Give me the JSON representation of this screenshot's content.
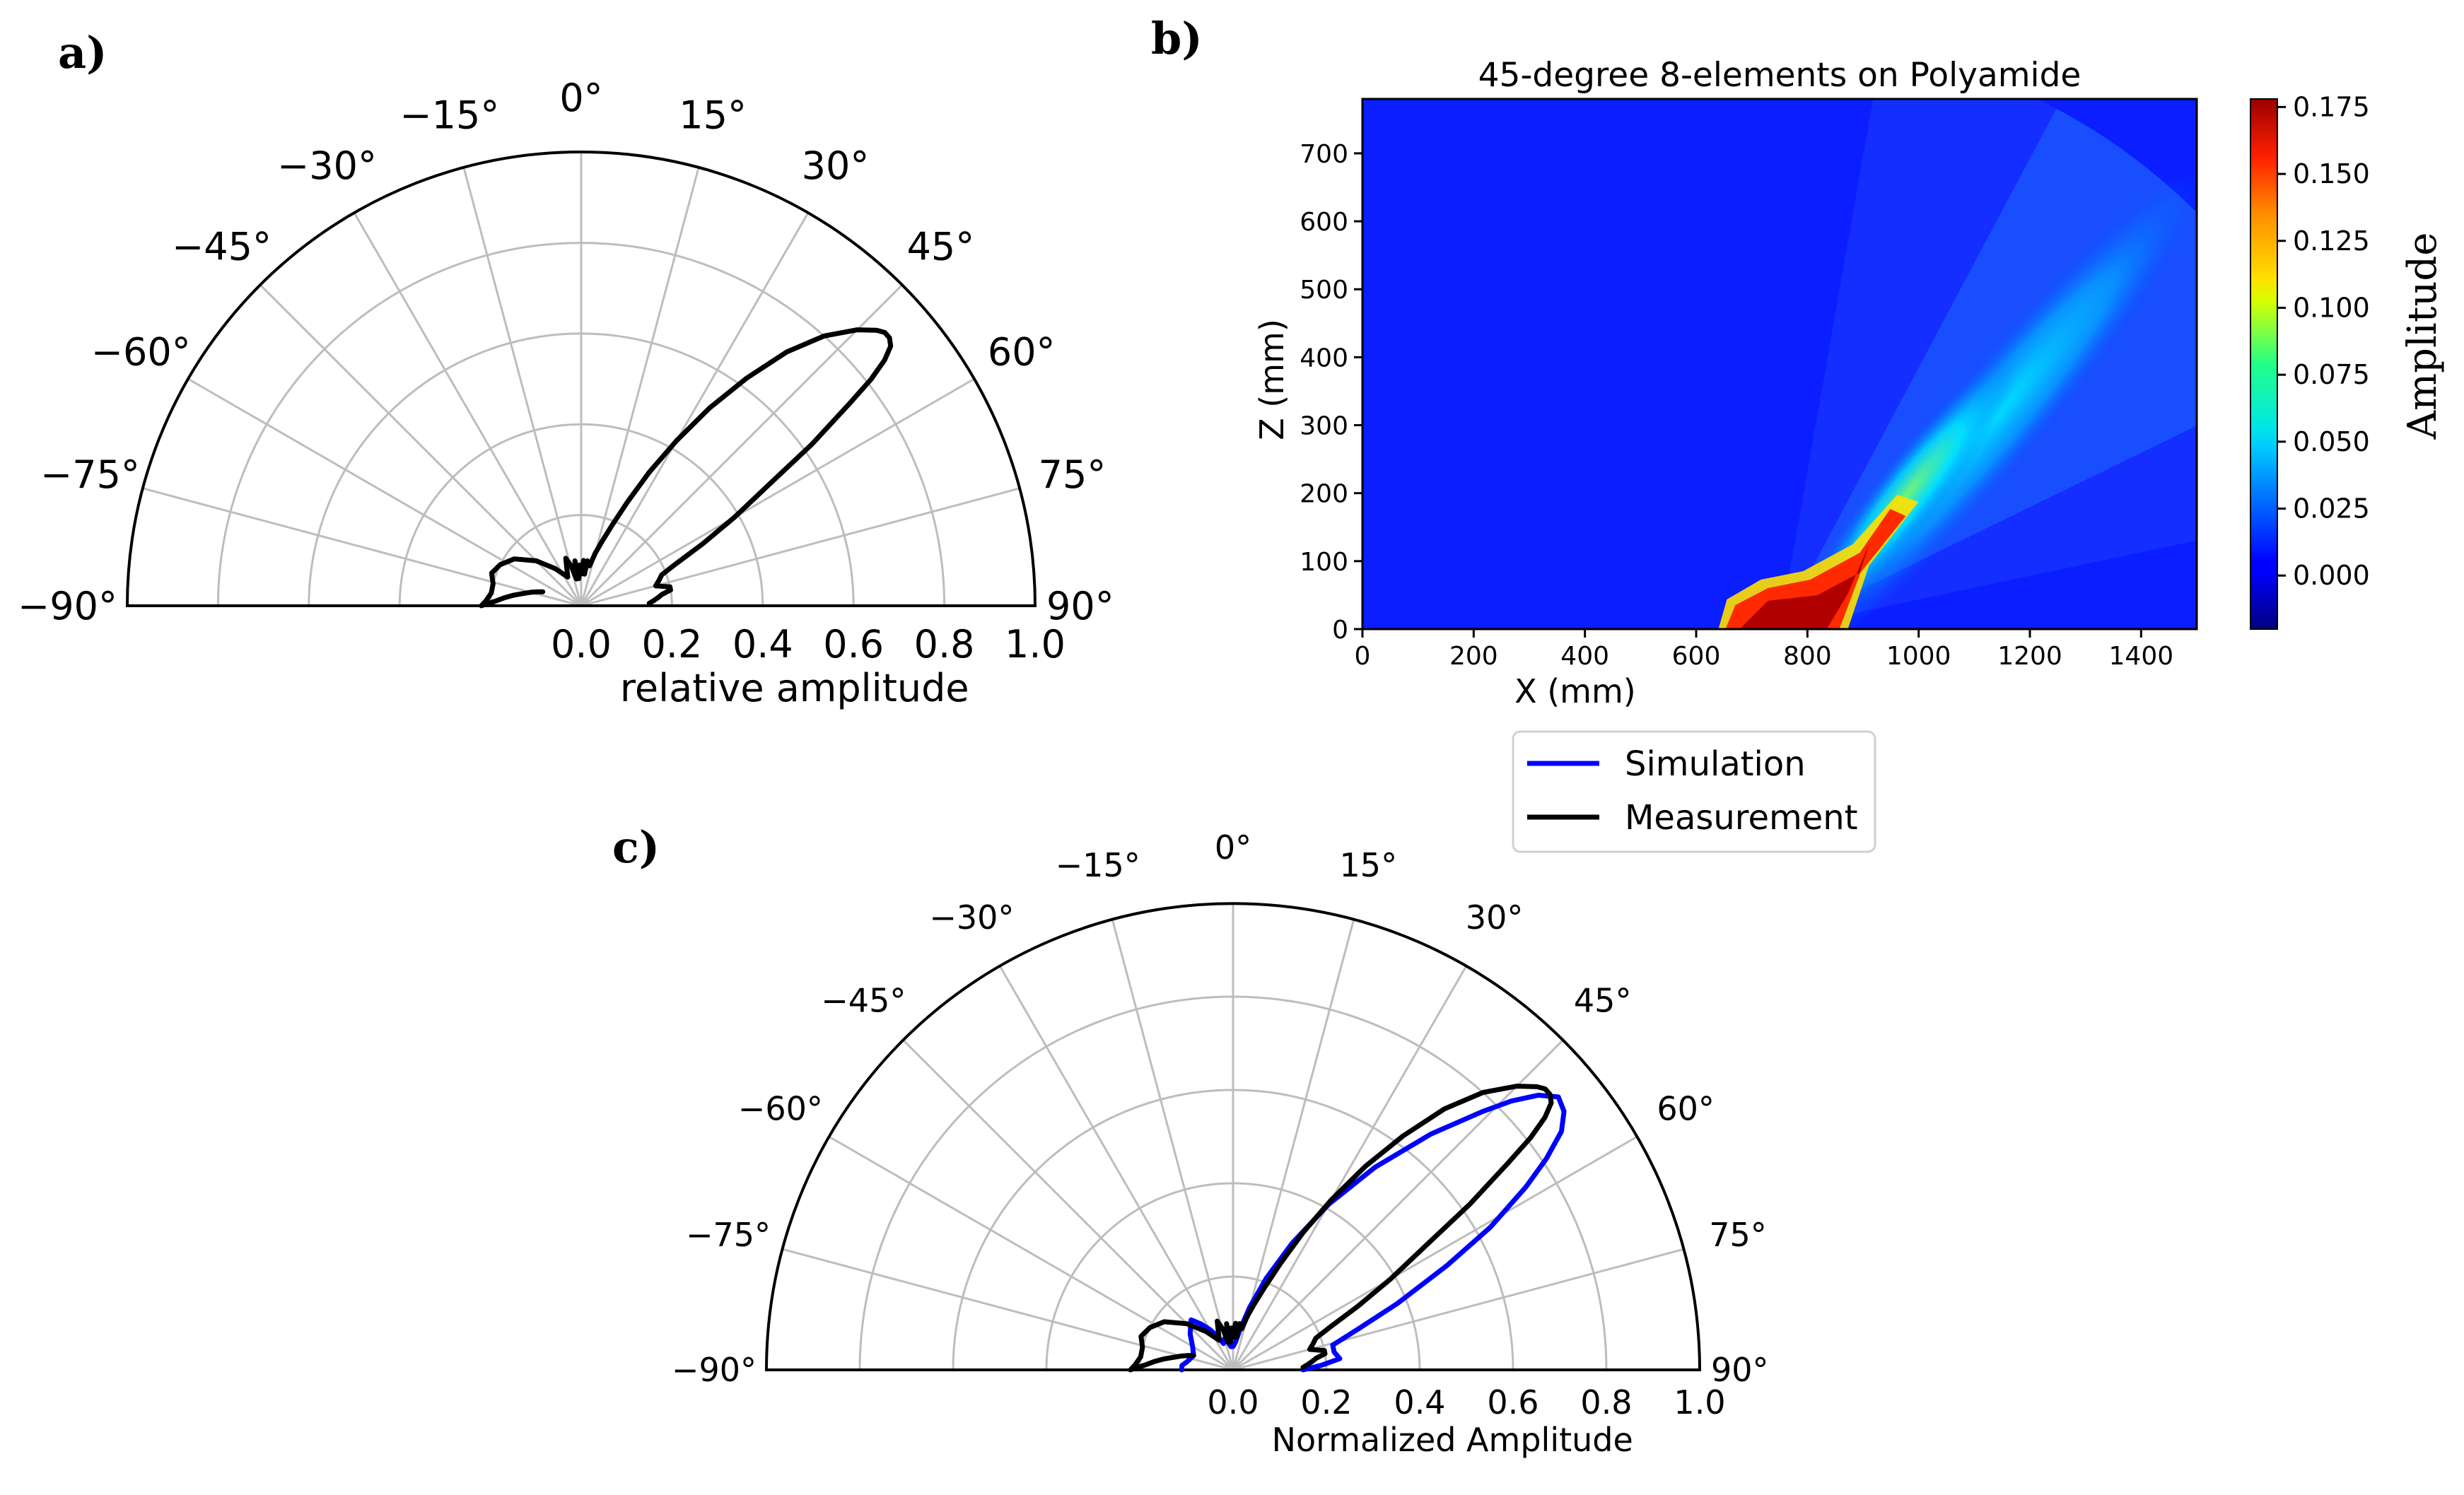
{
  "panels": {
    "a": {
      "letter": "a)"
    },
    "b": {
      "letter": "b)"
    },
    "c": {
      "letter": "c)"
    }
  },
  "chart_data": [
    {
      "panel": "a)",
      "type": "line",
      "projection": "polar-half",
      "angle_ticks_deg": [
        -90,
        -75,
        -60,
        -45,
        -30,
        -15,
        0,
        15,
        30,
        45,
        60,
        75,
        90
      ],
      "angle_tick_labels": [
        "−90°",
        "−75°",
        "−60°",
        "−45°",
        "−30°",
        "−15°",
        "0°",
        "15°",
        "30°",
        "45°",
        "60°",
        "75°",
        "90°"
      ],
      "radial_ticks": [
        "0.0",
        "0.2",
        "0.4",
        "0.6",
        "0.8",
        "1.0"
      ],
      "rlim": [
        0,
        1
      ],
      "xlabel": "relative amplitude",
      "grid": true,
      "series": [
        {
          "name": "Measurement",
          "color": "#000000",
          "angle_deg": [
            -70,
            -72,
            -75,
            -78,
            -81,
            -84,
            -87,
            -89,
            -90,
            -87,
            -82,
            -76,
            -70,
            -63,
            -55,
            -45,
            -35,
            -25,
            -18,
            -14,
            -10,
            -8,
            -5,
            -2,
            0,
            3,
            6,
            8,
            12,
            15,
            18,
            21,
            24,
            27,
            30,
            33,
            36,
            39,
            42,
            45,
            47,
            48,
            49,
            50,
            51,
            52,
            53,
            55,
            57,
            60,
            63,
            66,
            69,
            72,
            75,
            78,
            80,
            82,
            84,
            86,
            88
          ],
          "r": [
            0.09,
            0.1,
            0.115,
            0.13,
            0.15,
            0.17,
            0.19,
            0.21,
            0.22,
            0.21,
            0.2,
            0.2,
            0.21,
            0.2,
            0.18,
            0.14,
            0.1,
            0.07,
            0.11,
            0.09,
            0.06,
            0.1,
            0.06,
            0.09,
            0.07,
            0.1,
            0.07,
            0.1,
            0.09,
            0.12,
            0.15,
            0.19,
            0.25,
            0.33,
            0.42,
            0.52,
            0.62,
            0.72,
            0.8,
            0.86,
            0.89,
            0.9,
            0.9,
            0.89,
            0.86,
            0.81,
            0.74,
            0.62,
            0.5,
            0.39,
            0.3,
            0.23,
            0.19,
            0.18,
            0.17,
            0.2,
            0.2,
            0.18,
            0.17,
            0.16,
            0.15
          ]
        }
      ]
    },
    {
      "panel": "b)",
      "type": "heatmap",
      "title": "45-degree 8-elements on Polyamide",
      "xlabel": "X (mm)",
      "ylabel": "Z (mm)",
      "xlim": [
        0,
        1500
      ],
      "ylim": [
        0,
        780
      ],
      "x_ticks": [
        "0",
        "200",
        "400",
        "600",
        "800",
        "1000",
        "1200",
        "1400"
      ],
      "y_ticks": [
        "0",
        "100",
        "200",
        "300",
        "400",
        "500",
        "600",
        "700"
      ],
      "colorbar": {
        "label": "Amplitude",
        "range": [
          -0.02,
          0.178
        ],
        "ticks": [
          "0.000",
          "0.025",
          "0.050",
          "0.075",
          "0.100",
          "0.125",
          "0.150",
          "0.175"
        ],
        "colormap": "jet"
      },
      "beam": {
        "origin_x": 750,
        "origin_z": 0,
        "angle_deg": 45,
        "hotspot_x_range": [
          640,
          860
        ],
        "wavefront_radius_mm": 1060
      }
    },
    {
      "panel": "c)",
      "type": "line",
      "projection": "polar-half",
      "angle_ticks_deg": [
        -90,
        -75,
        -60,
        -45,
        -30,
        -15,
        0,
        15,
        30,
        45,
        60,
        75,
        90
      ],
      "angle_tick_labels": [
        "−90°",
        "−75°",
        "−60°",
        "−45°",
        "−30°",
        "−15°",
        "0°",
        "15°",
        "30°",
        "45°",
        "60°",
        "75°",
        "90°"
      ],
      "radial_ticks": [
        "0.0",
        "0.2",
        "0.4",
        "0.6",
        "0.8",
        "1.0"
      ],
      "rlim": [
        0,
        1
      ],
      "xlabel": "Normalized Amplitude",
      "grid": true,
      "legend": {
        "placement": "top-center",
        "entries": [
          "Simulation",
          "Measurement"
        ]
      },
      "series": [
        {
          "name": "Simulation",
          "color": "#0000ff",
          "angle_deg": [
            -90,
            -85,
            -80,
            -70,
            -60,
            -50,
            -40,
            -35,
            -30,
            -25,
            -20,
            -15,
            -10,
            -5,
            0,
            5,
            10,
            15,
            20,
            25,
            30,
            35,
            40,
            44,
            46,
            48,
            50,
            52,
            54,
            56,
            58,
            61,
            64,
            68,
            72,
            76,
            80,
            84,
            87,
            90
          ],
          "r": [
            0.11,
            0.11,
            0.1,
            0.09,
            0.1,
            0.12,
            0.14,
            0.12,
            0.1,
            0.08,
            0.06,
            0.07,
            0.06,
            0.05,
            0.05,
            0.06,
            0.09,
            0.14,
            0.21,
            0.3,
            0.41,
            0.53,
            0.66,
            0.77,
            0.83,
            0.88,
            0.91,
            0.9,
            0.87,
            0.81,
            0.74,
            0.63,
            0.51,
            0.38,
            0.28,
            0.22,
            0.22,
            0.23,
            0.19,
            0.15
          ]
        },
        {
          "name": "Measurement",
          "color": "#000000",
          "angle_deg": [
            -70,
            -72,
            -75,
            -78,
            -81,
            -84,
            -87,
            -89,
            -90,
            -87,
            -82,
            -76,
            -70,
            -63,
            -55,
            -45,
            -35,
            -25,
            -18,
            -14,
            -10,
            -8,
            -5,
            -2,
            0,
            3,
            6,
            8,
            12,
            15,
            18,
            21,
            24,
            27,
            30,
            33,
            36,
            39,
            42,
            45,
            47,
            48,
            49,
            50,
            51,
            52,
            53,
            55,
            57,
            60,
            63,
            66,
            69,
            72,
            75,
            78,
            80,
            82,
            84,
            86,
            88
          ],
          "r": [
            0.09,
            0.1,
            0.115,
            0.13,
            0.15,
            0.17,
            0.19,
            0.21,
            0.22,
            0.21,
            0.2,
            0.2,
            0.21,
            0.2,
            0.18,
            0.14,
            0.1,
            0.07,
            0.11,
            0.09,
            0.06,
            0.1,
            0.06,
            0.09,
            0.07,
            0.1,
            0.07,
            0.1,
            0.09,
            0.12,
            0.15,
            0.19,
            0.25,
            0.33,
            0.42,
            0.52,
            0.62,
            0.72,
            0.8,
            0.86,
            0.89,
            0.9,
            0.9,
            0.89,
            0.86,
            0.81,
            0.74,
            0.62,
            0.5,
            0.39,
            0.3,
            0.23,
            0.19,
            0.18,
            0.17,
            0.2,
            0.2,
            0.18,
            0.17,
            0.16,
            0.15
          ]
        }
      ]
    }
  ]
}
